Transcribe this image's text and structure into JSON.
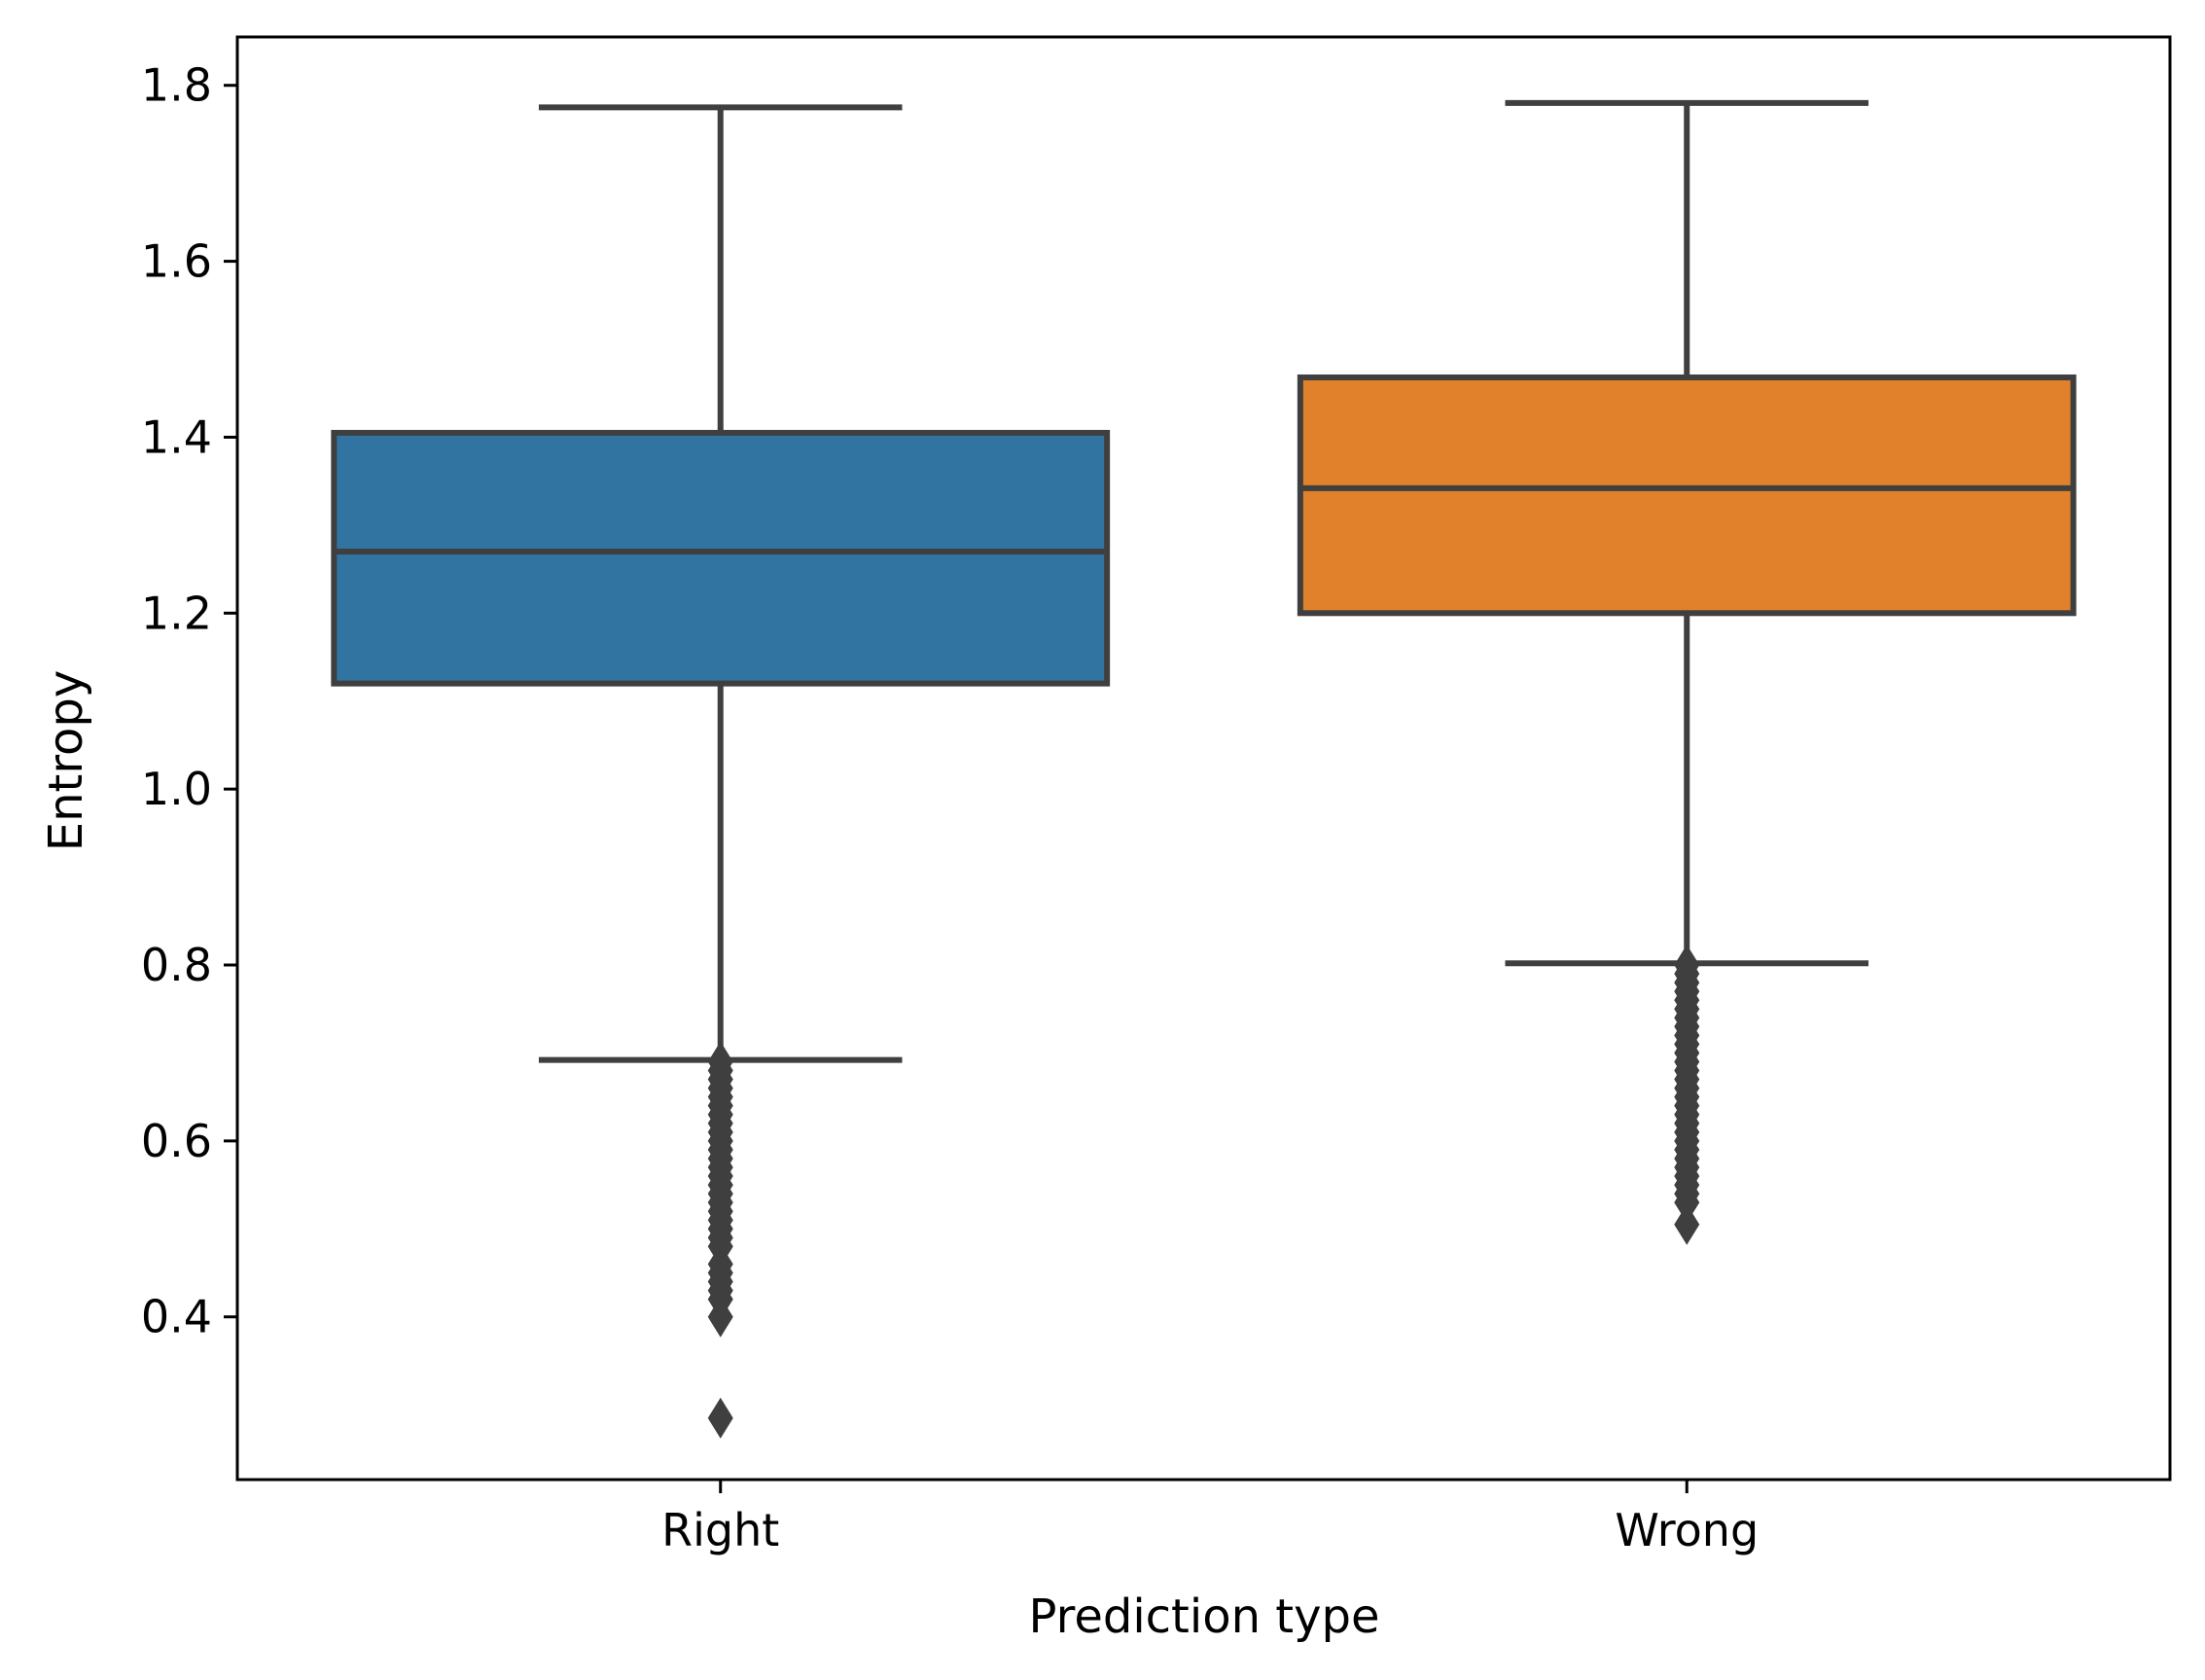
{
  "chart_data": {
    "type": "box",
    "xlabel": "Prediction type",
    "ylabel": "Entropy",
    "ylim": [
      0.215,
      1.855
    ],
    "yticks": [
      {
        "value": 0.4,
        "label": "0.4"
      },
      {
        "value": 0.6,
        "label": "0.6"
      },
      {
        "value": 0.8,
        "label": "0.8"
      },
      {
        "value": 1.0,
        "label": "1.0"
      },
      {
        "value": 1.2,
        "label": "1.2"
      },
      {
        "value": 1.4,
        "label": "1.4"
      },
      {
        "value": 1.6,
        "label": "1.6"
      },
      {
        "value": 1.8,
        "label": "1.8"
      }
    ],
    "grid": false,
    "categories": [
      "Right",
      "Wrong"
    ],
    "boxes": [
      {
        "category": "Right",
        "color": "#3274a1",
        "whisker_low": 0.692,
        "q1": 1.12,
        "median": 1.27,
        "q3": 1.405,
        "whisker_high": 1.775,
        "outliers": [
          0.69,
          0.68,
          0.67,
          0.66,
          0.65,
          0.64,
          0.63,
          0.62,
          0.61,
          0.6,
          0.59,
          0.58,
          0.57,
          0.56,
          0.55,
          0.54,
          0.53,
          0.52,
          0.51,
          0.5,
          0.49,
          0.48,
          0.46,
          0.45,
          0.44,
          0.43,
          0.42,
          0.4,
          0.285
        ]
      },
      {
        "category": "Wrong",
        "color": "#e1812c",
        "whisker_low": 0.802,
        "q1": 1.2,
        "median": 1.342,
        "q3": 1.468,
        "whisker_high": 1.78,
        "outliers": [
          0.8,
          0.79,
          0.78,
          0.77,
          0.76,
          0.75,
          0.74,
          0.73,
          0.72,
          0.71,
          0.7,
          0.69,
          0.68,
          0.67,
          0.66,
          0.65,
          0.64,
          0.63,
          0.62,
          0.61,
          0.6,
          0.59,
          0.58,
          0.57,
          0.56,
          0.55,
          0.54,
          0.53,
          0.505
        ]
      }
    ],
    "line_color": "#3f3f3f"
  }
}
